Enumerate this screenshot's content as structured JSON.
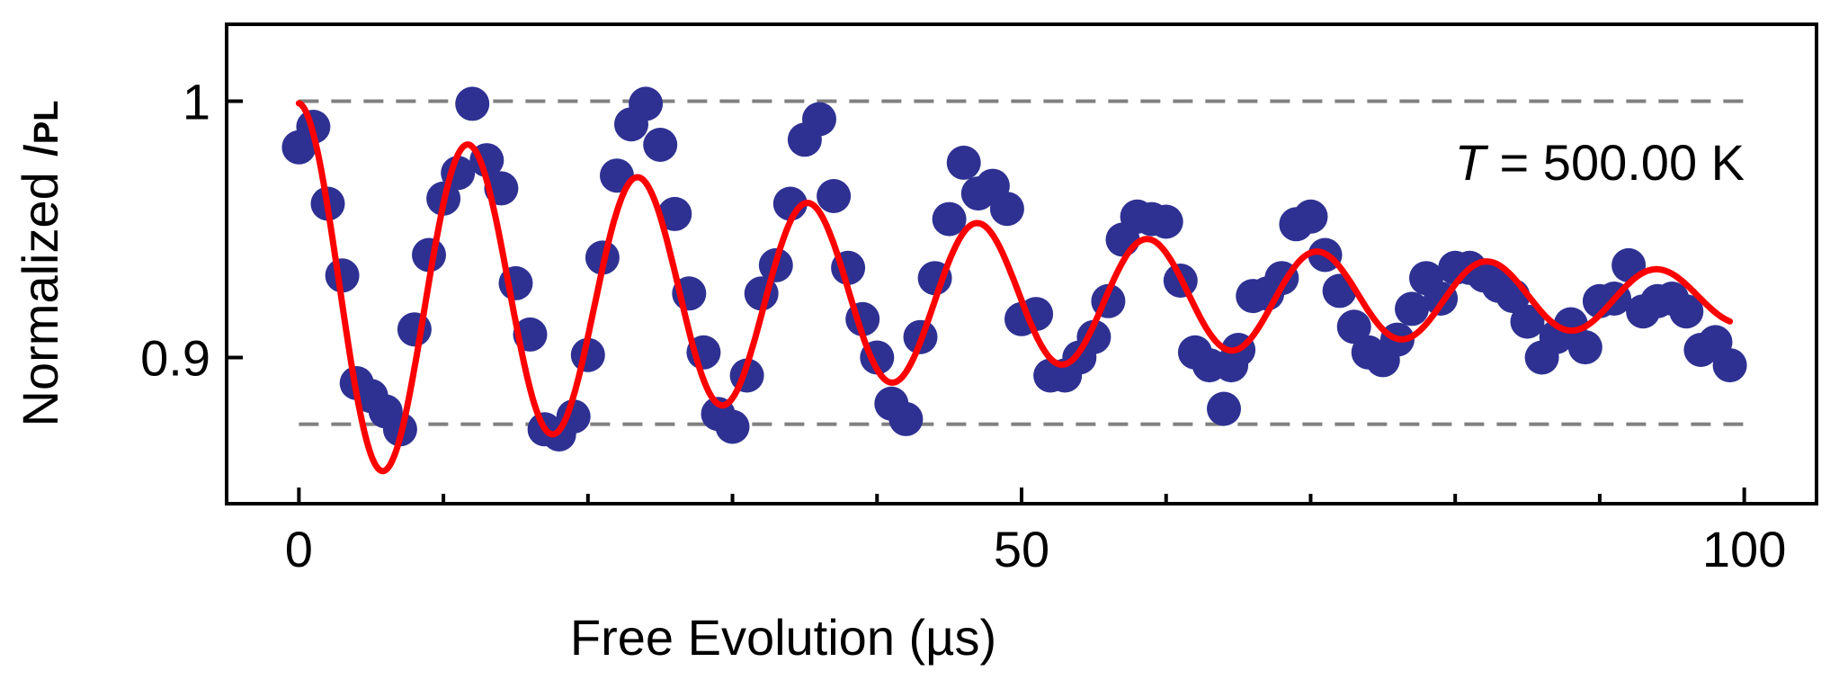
{
  "chart_data": {
    "type": "scatter",
    "title": "",
    "xlabel": "Free Evolution (µs)",
    "ylabel": {
      "main": "Normalized ",
      "italic": "I",
      "sub": "PL"
    },
    "annotation": {
      "italic": "T",
      "rest": " = 500.00 K"
    },
    "xlim": [
      -5,
      105
    ],
    "ylim": [
      0.843,
      1.03
    ],
    "x_ticks": [
      0,
      50,
      100
    ],
    "x_tick_labels": [
      "0",
      "50",
      "100"
    ],
    "x_minor_ticks": [
      10,
      20,
      30,
      40,
      60,
      70,
      80,
      90
    ],
    "y_ticks": [
      0.9,
      1.0
    ],
    "y_tick_labels": [
      "0.9",
      "1"
    ],
    "reference_lines": [
      1.0,
      0.874
    ],
    "colors": {
      "data": "#2e3192",
      "fit": "#ff0000",
      "reference": "#808080",
      "axes": "#000000"
    },
    "series": [
      {
        "kind": "points",
        "x": [
          0,
          1,
          2,
          3,
          4,
          5,
          6,
          7,
          8,
          9,
          10,
          11,
          12,
          13,
          14,
          15,
          16,
          17,
          18,
          19,
          20,
          21,
          22,
          23,
          24,
          25,
          26,
          27,
          28,
          29,
          30,
          31,
          32,
          33,
          34,
          35,
          36,
          37,
          38,
          39,
          40,
          41,
          42,
          43,
          44,
          45,
          46,
          47,
          48,
          49,
          50,
          51,
          52,
          53,
          54,
          55,
          56,
          57,
          58,
          59,
          60,
          61,
          62,
          63,
          64,
          65,
          66,
          67,
          68,
          69,
          70,
          71,
          72,
          73,
          74,
          75,
          76,
          77,
          78,
          79,
          80,
          81,
          82,
          83,
          84,
          85,
          86,
          87,
          88,
          89,
          90,
          91,
          92,
          93,
          94,
          95,
          96,
          97,
          98,
          99,
          64.5
        ],
        "y": [
          0.982,
          0.99,
          0.96,
          0.932,
          0.89,
          0.885,
          0.879,
          0.872,
          0.911,
          0.94,
          0.962,
          0.972,
          0.999,
          0.977,
          0.966,
          0.929,
          0.909,
          0.872,
          0.87,
          0.877,
          0.901,
          0.939,
          0.971,
          0.991,
          0.999,
          0.983,
          0.956,
          0.925,
          0.902,
          0.878,
          0.873,
          0.893,
          0.925,
          0.936,
          0.96,
          0.985,
          0.993,
          0.963,
          0.935,
          0.915,
          0.9,
          0.882,
          0.876,
          0.908,
          0.931,
          0.954,
          0.976,
          0.964,
          0.967,
          0.958,
          0.915,
          0.917,
          0.893,
          0.893,
          0.9,
          0.908,
          0.922,
          0.946,
          0.955,
          0.954,
          0.953,
          0.93,
          0.902,
          0.897,
          0.88,
          0.903,
          0.924,
          0.925,
          0.931,
          0.952,
          0.955,
          0.94,
          0.926,
          0.912,
          0.902,
          0.899,
          0.907,
          0.919,
          0.931,
          0.923,
          0.935,
          0.935,
          0.932,
          0.928,
          0.924,
          0.914,
          0.9,
          0.908,
          0.913,
          0.904,
          0.922,
          0.923,
          0.936,
          0.918,
          0.922,
          0.923,
          0.918,
          0.903,
          0.906,
          0.897,
          0.897
        ]
      },
      {
        "kind": "fit",
        "model": "0.9232 + 0.076*exp(-x/49.2)*cos(2*pi*x/11.75)",
        "x_range": [
          0,
          99
        ]
      }
    ]
  }
}
